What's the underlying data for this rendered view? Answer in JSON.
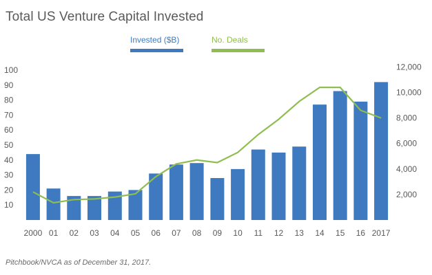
{
  "title": "Total US Venture Capital Invested",
  "source": "Pitchbook/NVCA as of December 31, 2017.",
  "colors": {
    "bar": "#3f7ac0",
    "line": "#8fbd50",
    "text": "#595959"
  },
  "legend": {
    "invested": "Invested ($B)",
    "deals": "No. Deals"
  },
  "chart_data": {
    "type": "bar",
    "title": "Total US Venture Capital Invested",
    "categories": [
      "2000",
      "01",
      "02",
      "03",
      "04",
      "05",
      "06",
      "07",
      "08",
      "09",
      "10",
      "11",
      "12",
      "13",
      "14",
      "15",
      "16",
      "2017"
    ],
    "series": [
      {
        "name": "Invested ($B)",
        "type": "bar",
        "axis": "left",
        "values": [
          44,
          21,
          16,
          16,
          19,
          20,
          31,
          37,
          38,
          28,
          34,
          47,
          45,
          49,
          77,
          86,
          79,
          92
        ]
      },
      {
        "name": "No. Deals",
        "type": "line",
        "axis": "right",
        "values": [
          2200,
          1350,
          1600,
          1650,
          1800,
          2050,
          3400,
          4400,
          4700,
          4500,
          5300,
          6700,
          7900,
          9300,
          10400,
          10400,
          8600,
          8000
        ]
      }
    ],
    "yleft": {
      "ylim": [
        0,
        100
      ],
      "ticks": [
        "100",
        "90",
        "80",
        "70",
        "60",
        "50",
        "40",
        "30",
        "20",
        "10"
      ]
    },
    "yright": {
      "ylim": [
        0,
        12000
      ],
      "ticks": [
        "12,000",
        "10,000",
        "8,000",
        "6,000",
        "4,000",
        "2,000"
      ]
    },
    "legend_position": "top-center",
    "grid": false
  }
}
